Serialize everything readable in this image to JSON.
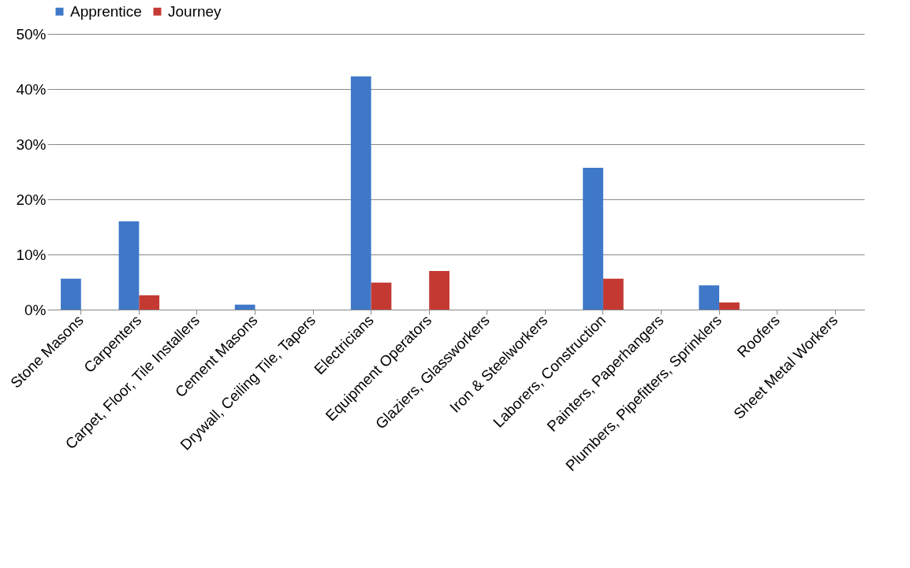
{
  "chart_data": {
    "type": "bar",
    "categories": [
      "Stone Masons",
      "Carpenters",
      "Carpet, Floor, Tile Installers",
      "Cement Masons",
      "Drywall, Ceiling Tile, Tapers",
      "Electricians",
      "Equipment Operators",
      "Glaziers, Glassworkers",
      "Iron & Steelworkers",
      "Laborers, Construction",
      "Painters, Paperhangers",
      "Plumbers, Pipefitters, Sprinklers",
      "Roofers",
      "Sheet Metal Workers"
    ],
    "series": [
      {
        "name": "Apprentice",
        "color": "#3f78c8",
        "values": [
          5.6,
          16.0,
          0,
          0.9,
          0,
          42.3,
          0,
          0,
          0,
          25.7,
          0,
          4.4,
          0,
          0
        ]
      },
      {
        "name": "Journey",
        "color": "#c43a33",
        "values": [
          0,
          2.6,
          0,
          0,
          0,
          4.9,
          7.0,
          0,
          0,
          5.6,
          0,
          1.3,
          0,
          0
        ]
      }
    ],
    "ylim": [
      0,
      50
    ],
    "yticks": [
      {
        "value": 0,
        "label": "0%"
      },
      {
        "value": 10,
        "label": "10%"
      },
      {
        "value": 20,
        "label": "20%"
      },
      {
        "value": 30,
        "label": "30%"
      },
      {
        "value": 40,
        "label": "40%"
      },
      {
        "value": 50,
        "label": "50%"
      }
    ],
    "grid": "y",
    "legend": "top"
  }
}
